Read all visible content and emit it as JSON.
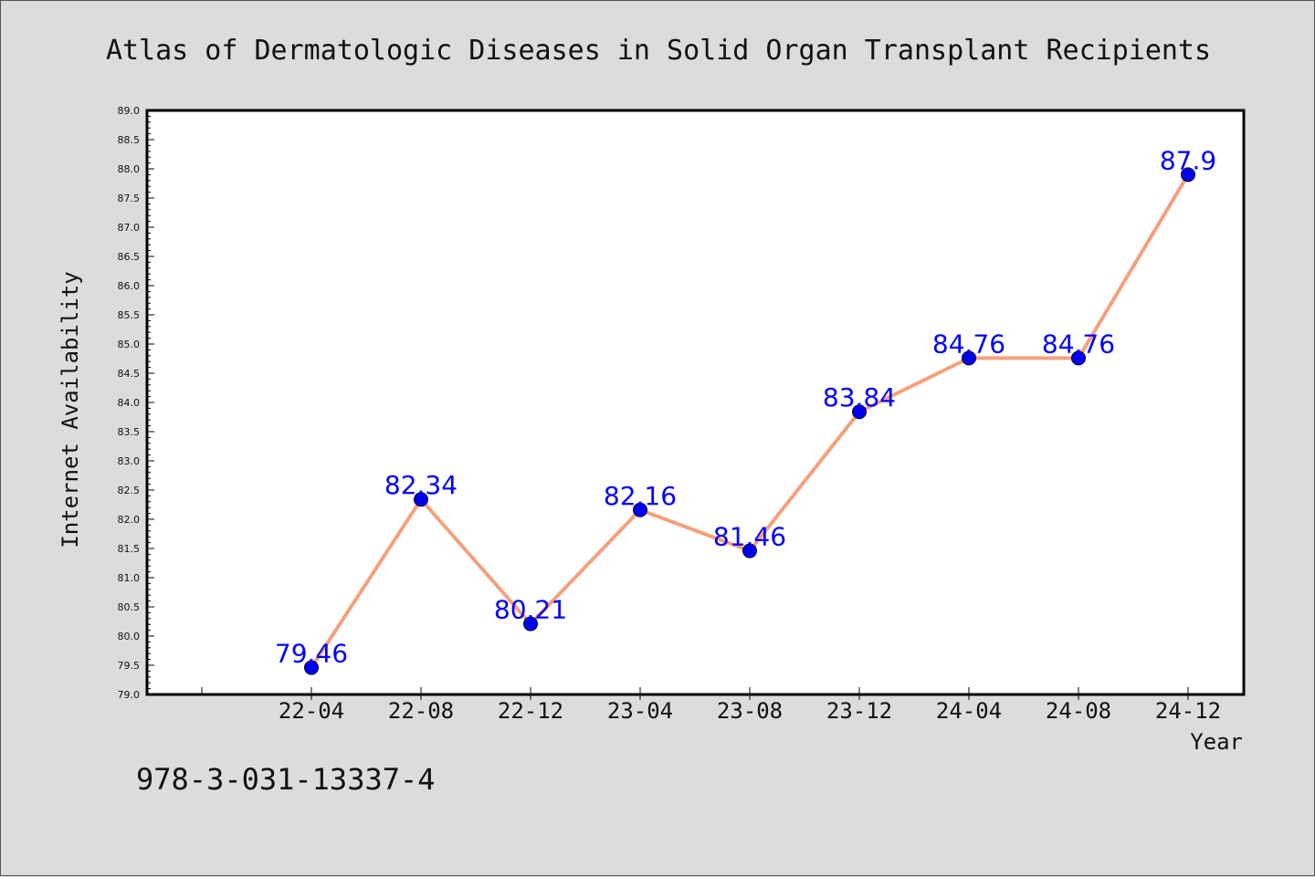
{
  "chart_data": {
    "type": "line",
    "title": "Atlas of Dermatologic Diseases in Solid Organ Transplant Recipients",
    "xlabel": "Year",
    "ylabel": "Internet Availability",
    "categories": [
      "22-04",
      "22-08",
      "22-12",
      "23-04",
      "23-08",
      "23-12",
      "24-04",
      "24-08",
      "24-12"
    ],
    "series": [
      {
        "values": [
          79.46,
          82.34,
          80.21,
          82.16,
          81.46,
          83.84,
          84.76,
          84.76,
          87.9
        ],
        "labels": [
          "79.46",
          "82.34",
          "80.21",
          "82.16",
          "81.46",
          "83.84",
          "84.76",
          "84.76",
          "87.9"
        ]
      }
    ],
    "ylim": [
      79.0,
      89.0
    ],
    "yticks": [
      "79.0",
      "79.5",
      "80.0",
      "80.5",
      "81.0",
      "81.5",
      "82.0",
      "82.5",
      "83.0",
      "83.5",
      "84.0",
      "84.5",
      "85.0",
      "85.5",
      "86.0",
      "86.5",
      "87.0",
      "87.5",
      "88.0",
      "88.5",
      "89.0"
    ],
    "grid": false,
    "colors": {
      "line": "#f4a07c",
      "marker": "#0000ee",
      "marker_edge": "#000033",
      "point_label": "#0000ff",
      "plot_bg": "#ffffff",
      "page_bg": "#dcdcdc"
    }
  },
  "footer": {
    "isbn": "978-3-031-13337-4"
  }
}
